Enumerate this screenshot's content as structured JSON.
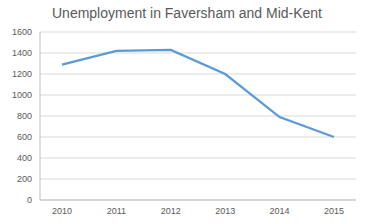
{
  "chart_data": {
    "type": "line",
    "title": "Unemployment in Faversham and Mid-Kent",
    "categories": [
      "2010",
      "2011",
      "2012",
      "2013",
      "2014",
      "2015"
    ],
    "values": [
      1290,
      1420,
      1430,
      1200,
      790,
      600
    ],
    "color": "#5b9bd5",
    "ylim": [
      0,
      1600
    ],
    "yticks": [
      0,
      200,
      400,
      600,
      800,
      1000,
      1200,
      1400,
      1600
    ],
    "grid": true
  }
}
